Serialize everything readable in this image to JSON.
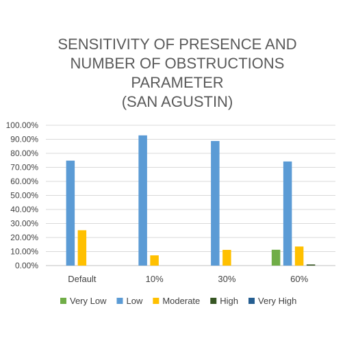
{
  "chart_data": {
    "type": "bar",
    "title_lines": [
      "SENSITIVITY OF PRESENCE AND",
      "NUMBER OF OBSTRUCTIONS",
      "PARAMETER",
      "(SAN AGUSTIN)"
    ],
    "categories": [
      "Default",
      "10%",
      "30%",
      "60%"
    ],
    "series": [
      {
        "name": "Very Low",
        "color": "#70ad47",
        "values": [
          0,
          0,
          0,
          11.3
        ]
      },
      {
        "name": "Low",
        "color": "#5b9bd5",
        "values": [
          74.8,
          92.8,
          88.8,
          74.2
        ]
      },
      {
        "name": "Moderate",
        "color": "#ffc000",
        "values": [
          25.2,
          7.3,
          11.2,
          13.6
        ]
      },
      {
        "name": "High",
        "color": "#375623",
        "values": [
          0,
          0,
          0,
          0.8
        ]
      },
      {
        "name": "Very High",
        "color": "#255e91",
        "values": [
          0,
          0,
          0,
          0
        ]
      }
    ],
    "y_ticks": [
      "0.00%",
      "10.00%",
      "20.00%",
      "30.00%",
      "40.00%",
      "50.00%",
      "60.00%",
      "70.00%",
      "80.00%",
      "90.00%",
      "100.00%"
    ],
    "ylim": [
      0,
      100
    ],
    "grid": true,
    "legend_position": "bottom"
  }
}
